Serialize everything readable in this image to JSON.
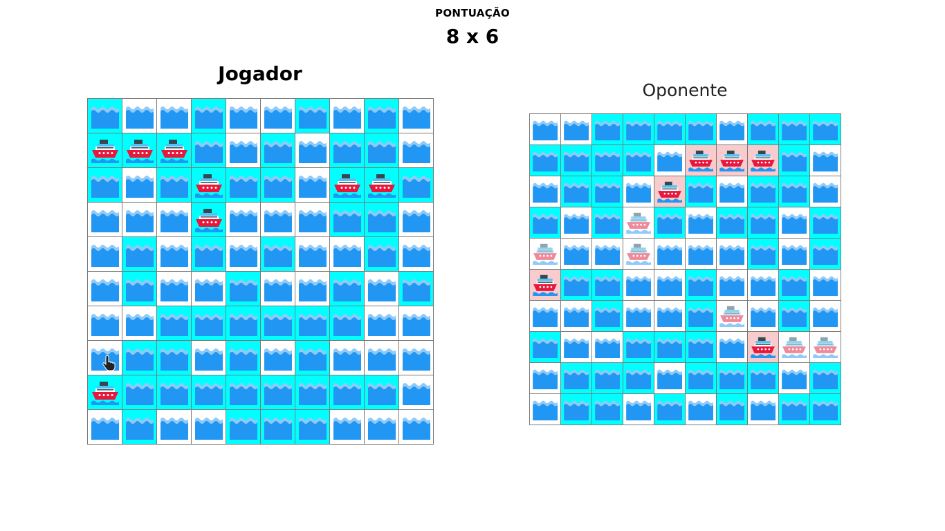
{
  "score": {
    "label": "PONTUAÇÃO",
    "value": "8 x 6"
  },
  "player": {
    "title": "Jogador",
    "rows": [
      "cwwcwwcwcw",
      "CCCcwcwccw",
      "cwcSccwSSc",
      "wwwSwwwccw",
      "wcwcwcwwcw",
      "wcwwcwwcwc",
      "wwccccccww",
      "Wccwcwcwww",
      "Cccccccccw",
      "wcwwcccwww"
    ]
  },
  "opponent": {
    "title": "Oponente",
    "rows": [
      "wwccccwccc",
      "ccccwHHHcw",
      "wccwHcwccw",
      "cwcLcwccwc",
      "LwwLwwwcwc",
      "Hccwwcwwcw",
      "wwcwwcLwcw",
      "cwwcccwHLL",
      "wcccwcccwc",
      "wccwcwcwcc"
    ]
  },
  "legend": {
    "w": "white-water",
    "c": "cyan-water",
    "C": "cyan-ship",
    "S": "cyan-ship-sunk",
    "W": "white-water-cursor",
    "H": "hit-ship",
    "L": "white-ship"
  },
  "colors": {
    "cyan": "#00ffff",
    "hit": "#f8cccc",
    "water": "#2196f3",
    "ship_red": "#e8173c"
  }
}
